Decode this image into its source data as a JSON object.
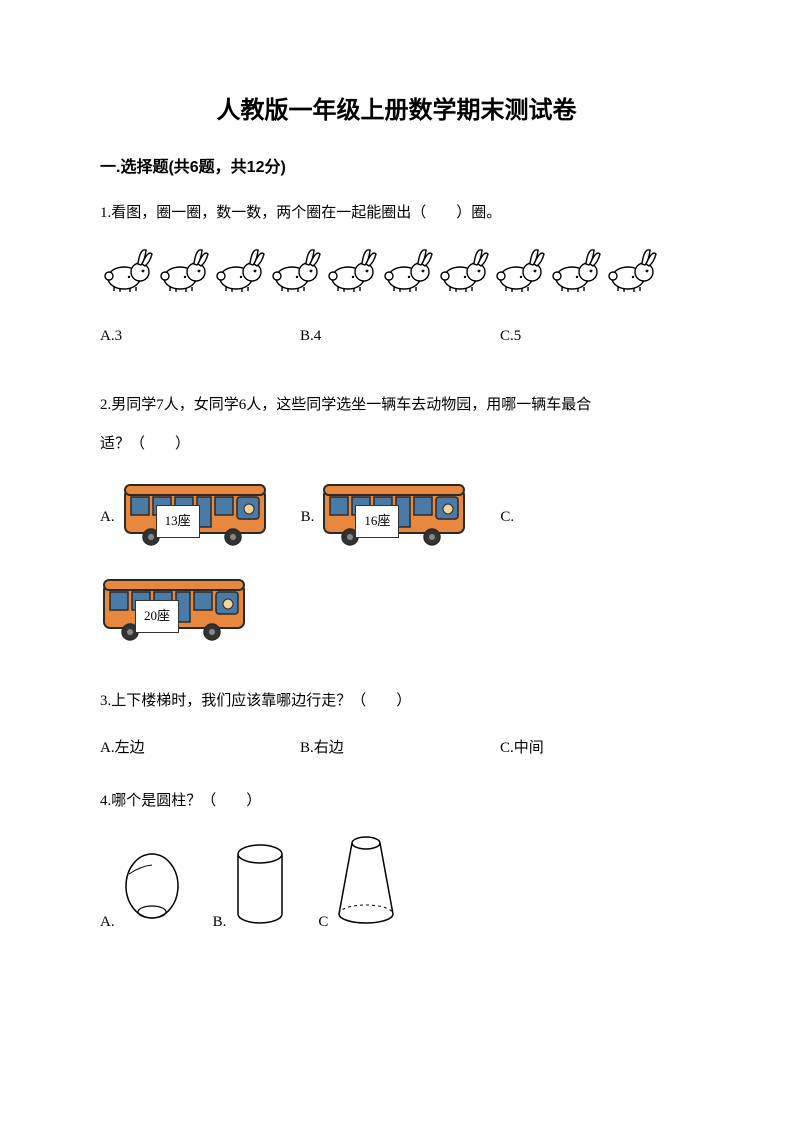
{
  "title": "人教版一年级上册数学期末测试卷",
  "section1": {
    "header": "一.选择题(共6题，共12分)"
  },
  "q1": {
    "text": "1.看图，圈一圈，数一数，两个圈在一起能圈出（　　）圈。",
    "rabbit_count": 10,
    "optA": "A.3",
    "optB": "B.4",
    "optC": "C.5"
  },
  "q2": {
    "line1": "2.男同学7人，女同学6人，这些同学选坐一辆车去动物园，用哪一辆车最合",
    "line2": "适？（　　）",
    "labelA": "A.",
    "labelB": "B.",
    "labelC": "C.",
    "busA": "13座",
    "busB": "16座",
    "busC": "20座",
    "bus_colors": {
      "body": "#e8883f",
      "window": "#4a7ba6",
      "wheel": "#333333",
      "outline": "#2a2a2a"
    }
  },
  "q3": {
    "text": "3.上下楼梯时，我们应该靠哪边行走？（　　）",
    "optA": "A.左边",
    "optB": "B.右边",
    "optC": "C.中间"
  },
  "q4": {
    "text": "4.哪个是圆柱？（　　）",
    "labelA": "A.",
    "labelB": "B.",
    "labelC": "C"
  },
  "style": {
    "text_color": "#000000",
    "bg_color": "#ffffff",
    "title_fontsize": 24,
    "body_fontsize": 15
  }
}
